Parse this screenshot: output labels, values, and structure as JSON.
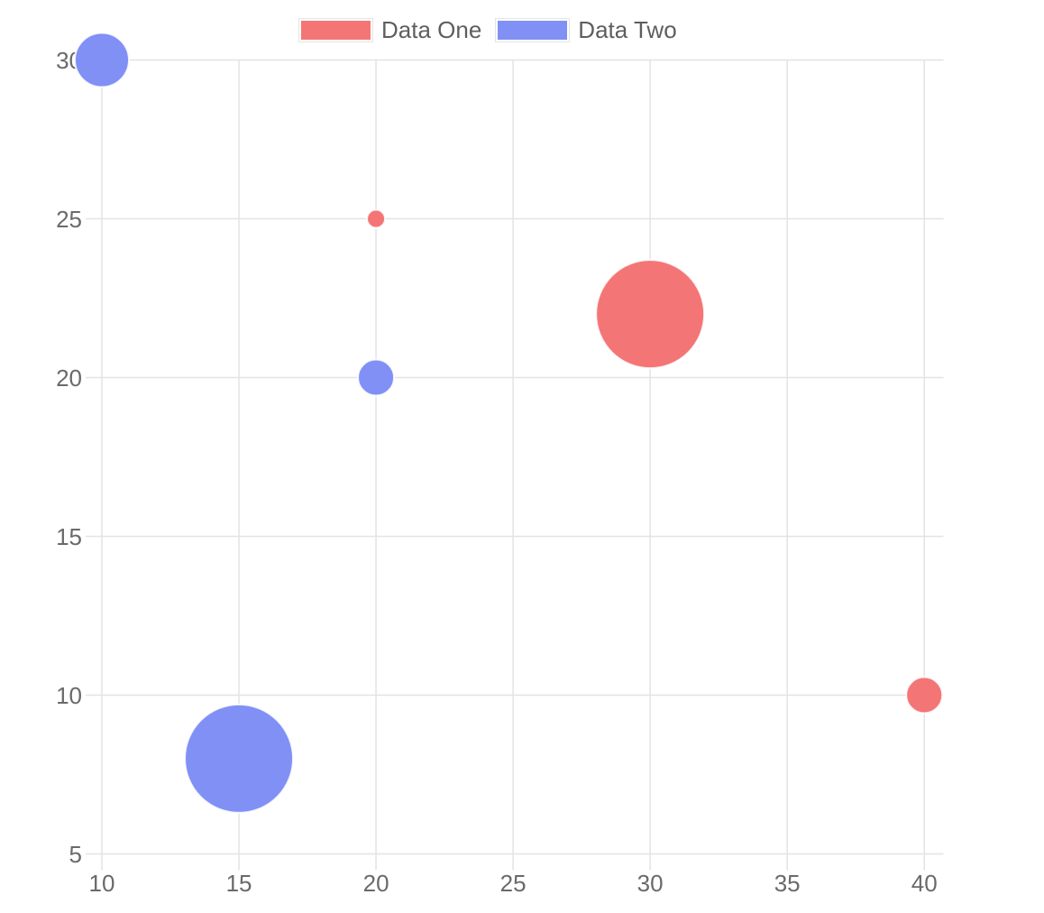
{
  "chart_data": {
    "type": "bubble",
    "title": "",
    "xlabel": "",
    "ylabel": "",
    "series": [
      {
        "name": "Data One",
        "color": "#f47576",
        "points": [
          {
            "x": 20,
            "y": 25,
            "r": 10
          },
          {
            "x": 30,
            "y": 22,
            "r": 60
          },
          {
            "x": 40,
            "y": 10,
            "r": 20
          }
        ]
      },
      {
        "name": "Data Two",
        "color": "#8090f5",
        "points": [
          {
            "x": 10,
            "y": 30,
            "r": 30
          },
          {
            "x": 20,
            "y": 20,
            "r": 20
          },
          {
            "x": 15,
            "y": 8,
            "r": 60
          }
        ]
      }
    ],
    "x_ticks": [
      10,
      15,
      20,
      25,
      30,
      35,
      40
    ],
    "y_ticks": [
      5,
      10,
      15,
      20,
      25,
      30
    ],
    "xlim": [
      10,
      40.7
    ],
    "ylim": [
      5,
      30
    ],
    "grid": true,
    "legend_position": "top",
    "r_unit": "px",
    "colors": {
      "grid": "#e3e3e3",
      "tick_label": "#6a6a6a",
      "legend_label": "#5e5e5e",
      "bubble_stroke": "#ffffff",
      "legend_box_border": "#e4e4e4"
    }
  }
}
